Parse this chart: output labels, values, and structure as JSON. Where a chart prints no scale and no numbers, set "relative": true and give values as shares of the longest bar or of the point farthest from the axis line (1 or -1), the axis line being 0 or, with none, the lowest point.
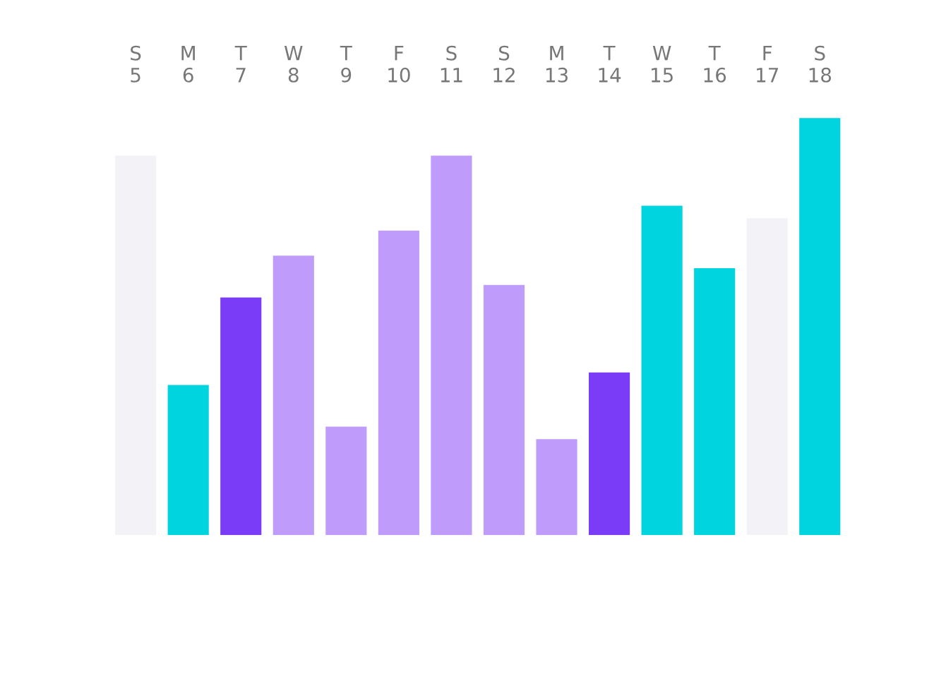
{
  "chart_data": {
    "type": "bar",
    "relative": true,
    "categories": [
      "S\n5",
      "M\n6",
      "T\n7",
      "W\n8",
      "T\n9",
      "F\n10",
      "S\n11",
      "S\n12",
      "M\n13",
      "T\n14",
      "W\n15",
      "T\n16",
      "F\n17",
      "S\n18"
    ],
    "values": [
      0.91,
      0.36,
      0.57,
      0.67,
      0.26,
      0.73,
      0.91,
      0.6,
      0.23,
      0.39,
      0.79,
      0.64,
      0.76,
      1.0
    ],
    "colors": [
      "#f3f2f7",
      "#00d4de",
      "#7b3cf7",
      "#bf9cfb",
      "#bf9cfb",
      "#bf9cfb",
      "#bf9cfb",
      "#bf9cfb",
      "#bf9cfb",
      "#7b3cf7",
      "#00d4de",
      "#00d4de",
      "#f3f2f7",
      "#00d4de"
    ],
    "grid": false,
    "legend": false
  }
}
